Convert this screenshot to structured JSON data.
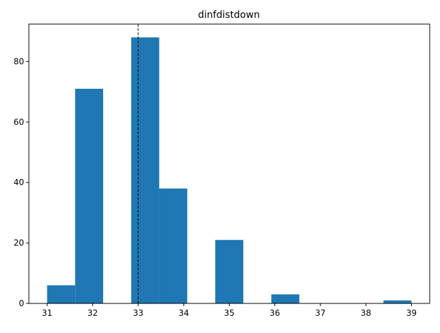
{
  "chart_data": {
    "type": "bar",
    "title": "dinfdistdown",
    "xlabel": "",
    "ylabel": "",
    "xlim": [
      30.6,
      39.4
    ],
    "ylim": [
      0,
      92.4
    ],
    "bin_edges": [
      31.0,
      31.6154,
      32.2308,
      32.8462,
      33.4615,
      34.0769,
      34.6923,
      35.3077,
      35.9231,
      36.5385,
      37.1538,
      37.7692,
      38.3846,
      39.0
    ],
    "counts": [
      6,
      71,
      0,
      88,
      38,
      0,
      21,
      0,
      3,
      0,
      0,
      0,
      1
    ],
    "x_ticks": [
      31,
      32,
      33,
      34,
      35,
      36,
      37,
      38,
      39
    ],
    "y_ticks": [
      0,
      20,
      40,
      60,
      80
    ],
    "reference_line": {
      "x": 33,
      "style": "dashed",
      "color": "#000000"
    },
    "bar_color": "#1f77b4",
    "grid": false
  }
}
